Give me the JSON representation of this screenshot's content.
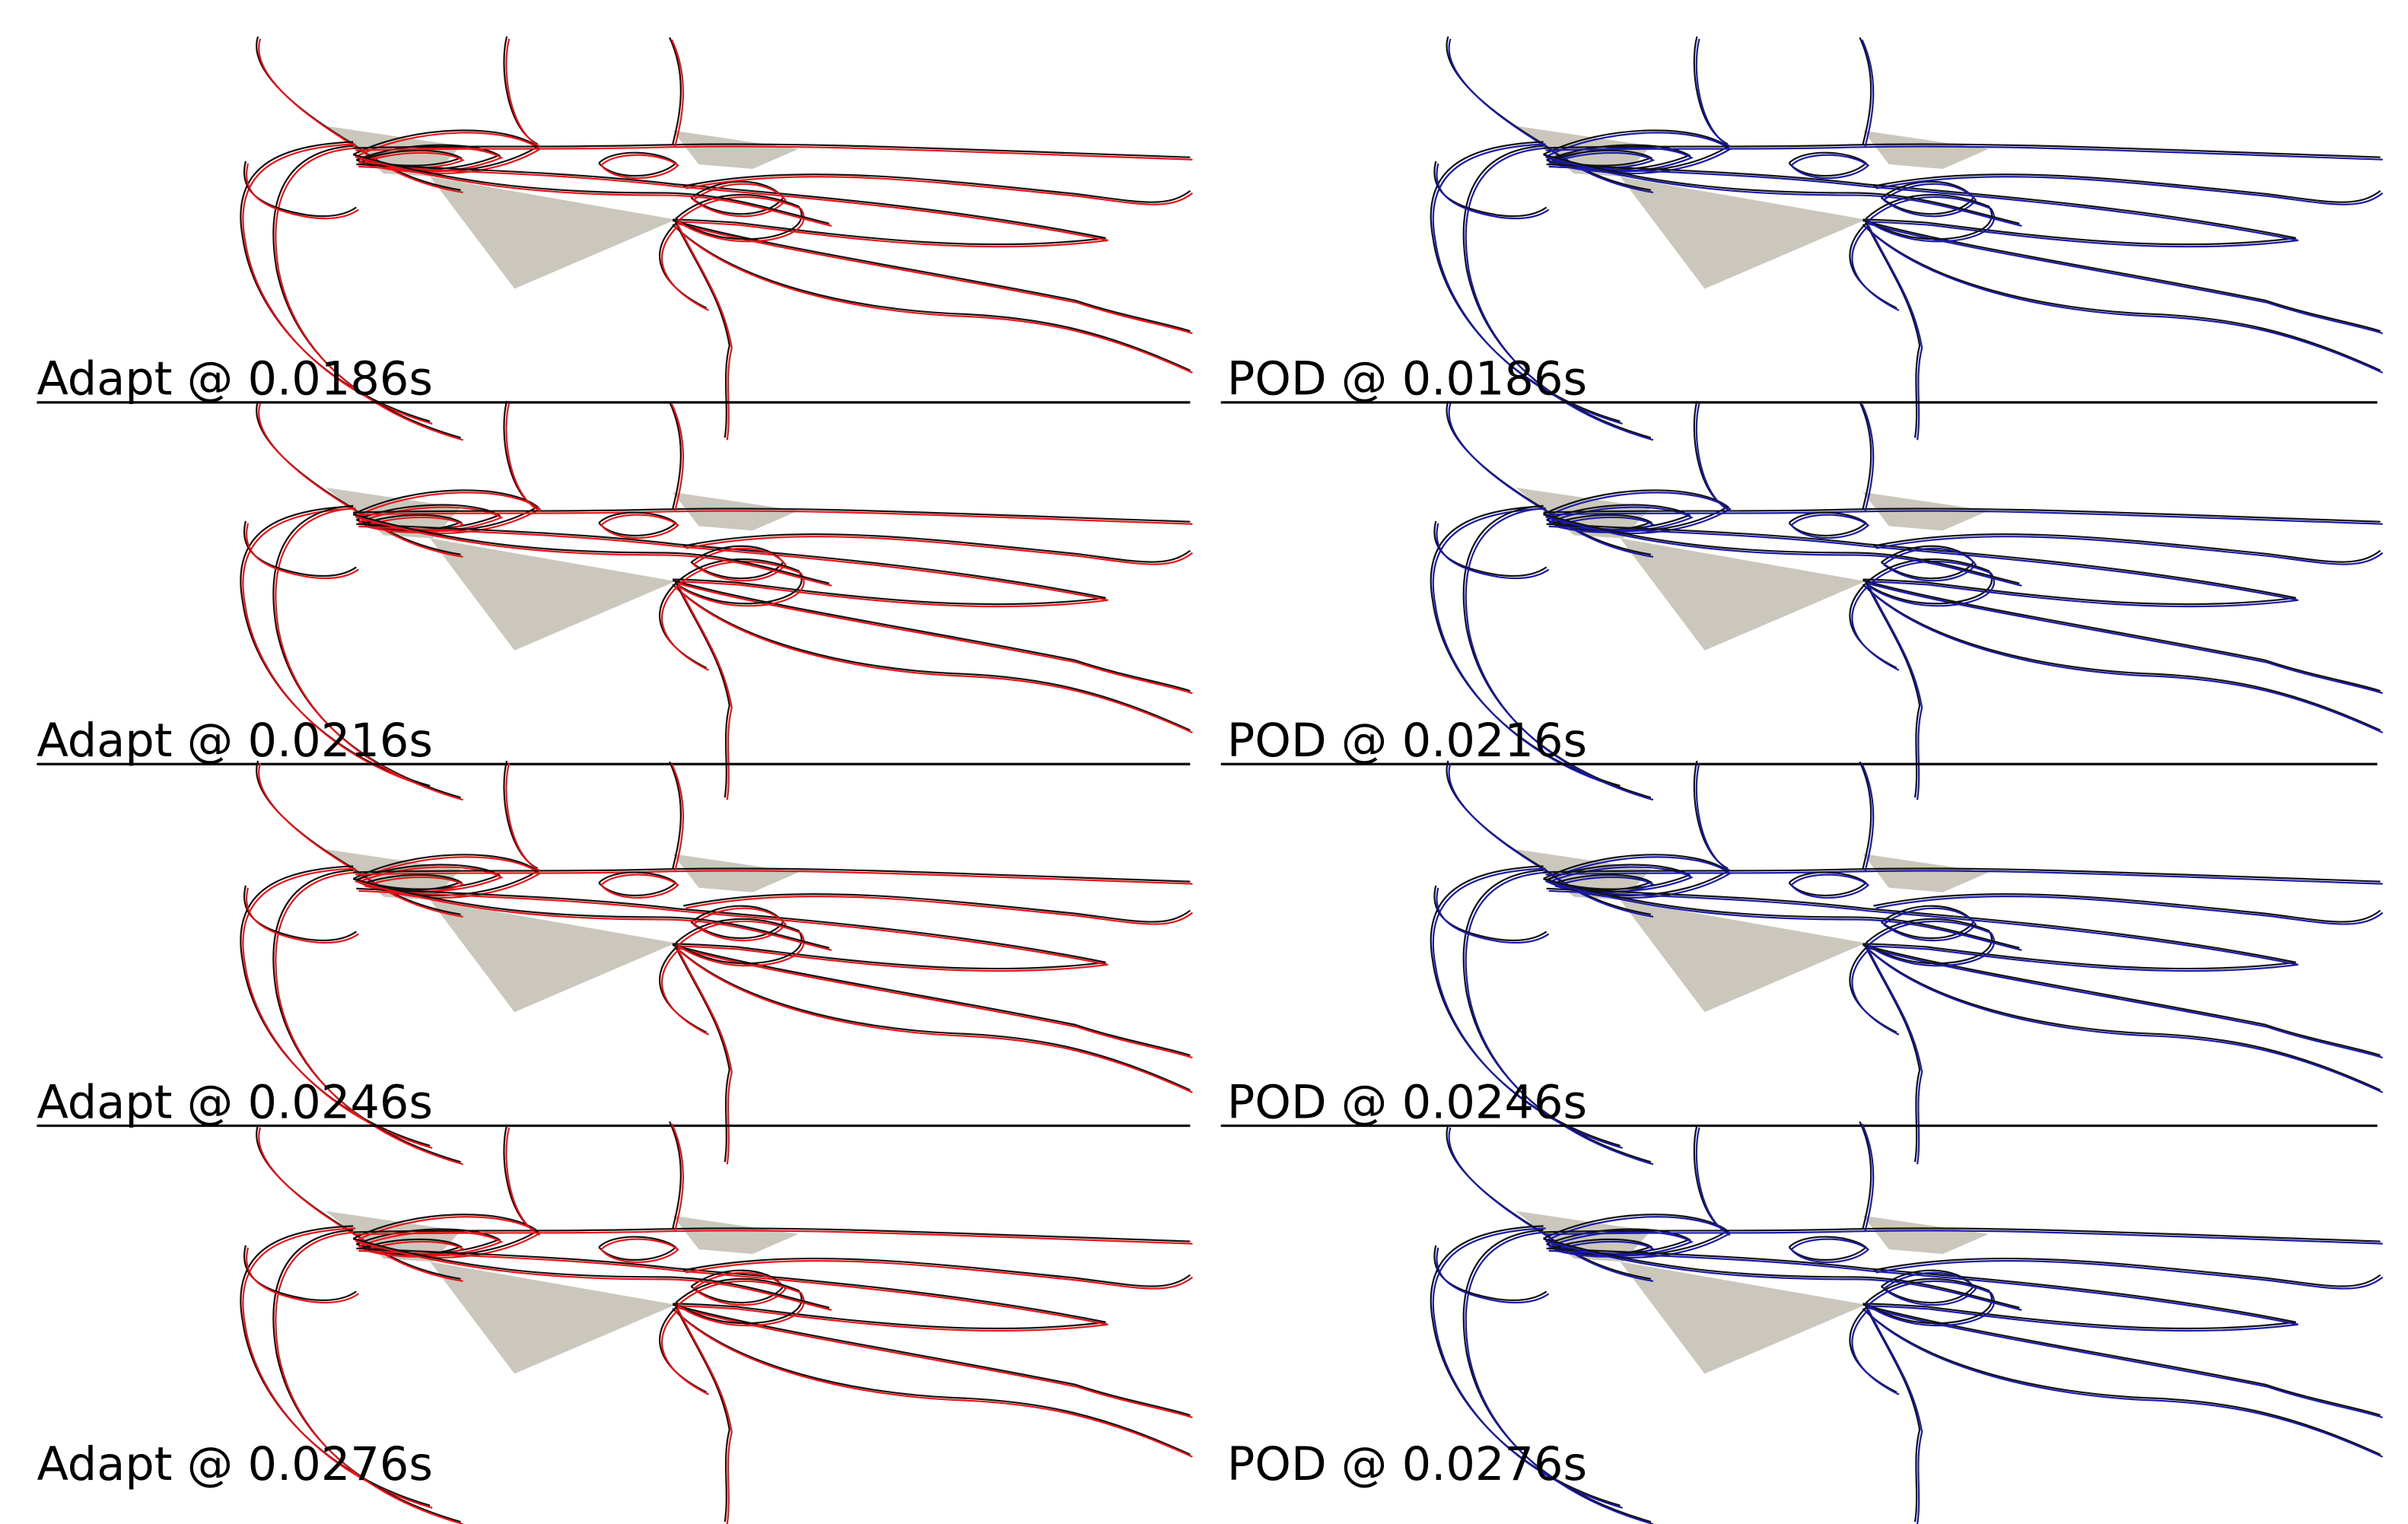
{
  "panels": [
    {
      "label": "Adapt @ 0.0186s"
    },
    {
      "label": "POD @ 0.0186s"
    },
    {
      "label": "Adapt @ 0.0216s"
    },
    {
      "label": "POD @ 0.0216s"
    },
    {
      "label": "Adapt @ 0.0246s"
    },
    {
      "label": "POD @ 0.0246s"
    },
    {
      "label": "Adapt @ 0.0276s"
    },
    {
      "label": "POD @ 0.0276s"
    }
  ]
}
